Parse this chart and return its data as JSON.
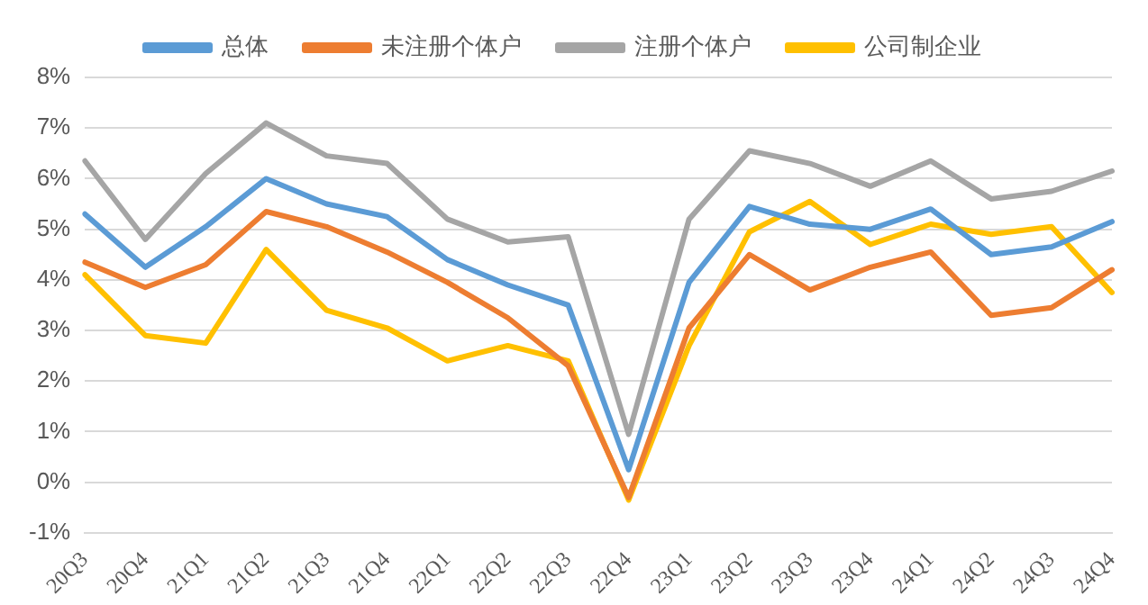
{
  "chart_data": {
    "type": "line",
    "categories": [
      "20Q3",
      "20Q4",
      "21Q1",
      "21Q2",
      "21Q3",
      "21Q4",
      "22Q1",
      "22Q2",
      "22Q3",
      "22Q4",
      "23Q1",
      "23Q2",
      "23Q3",
      "23Q4",
      "24Q1",
      "24Q2",
      "24Q3",
      "24Q4"
    ],
    "series": [
      {
        "name": "总体",
        "color": "#5b9bd5",
        "values": [
          5.3,
          4.25,
          5.05,
          6.0,
          5.5,
          5.25,
          4.4,
          3.9,
          3.5,
          0.25,
          3.95,
          5.45,
          5.1,
          5.0,
          5.4,
          4.5,
          4.65,
          5.15
        ]
      },
      {
        "name": "未注册个体户",
        "color": "#ed7d31",
        "values": [
          4.35,
          3.85,
          4.3,
          5.35,
          5.05,
          4.55,
          3.95,
          3.25,
          2.3,
          -0.3,
          3.05,
          4.5,
          3.8,
          4.25,
          4.55,
          3.3,
          3.45,
          4.2
        ]
      },
      {
        "name": "注册个体户",
        "color": "#a5a5a5",
        "values": [
          6.35,
          4.8,
          6.1,
          7.1,
          6.45,
          6.3,
          5.2,
          4.75,
          4.85,
          0.95,
          5.2,
          6.55,
          6.3,
          5.85,
          6.35,
          5.6,
          5.75,
          6.15
        ]
      },
      {
        "name": "公司制企业",
        "color": "#ffc000",
        "values": [
          4.1,
          2.9,
          2.75,
          4.6,
          3.4,
          3.05,
          2.4,
          2.7,
          2.4,
          -0.35,
          2.7,
          4.95,
          5.55,
          4.7,
          5.1,
          4.9,
          5.05,
          3.75
        ]
      }
    ],
    "ylim": [
      -1,
      8
    ],
    "yticks": [
      {
        "value": -1,
        "label": "-1%"
      },
      {
        "value": 0,
        "label": "0%"
      },
      {
        "value": 1,
        "label": "1%"
      },
      {
        "value": 2,
        "label": "2%"
      },
      {
        "value": 3,
        "label": "3%"
      },
      {
        "value": 4,
        "label": "4%"
      },
      {
        "value": 5,
        "label": "5%"
      },
      {
        "value": 6,
        "label": "6%"
      },
      {
        "value": 7,
        "label": "7%"
      },
      {
        "value": 8,
        "label": "8%"
      }
    ],
    "grid": "y",
    "legend": "top",
    "marker": "none",
    "line_style": "solid"
  }
}
